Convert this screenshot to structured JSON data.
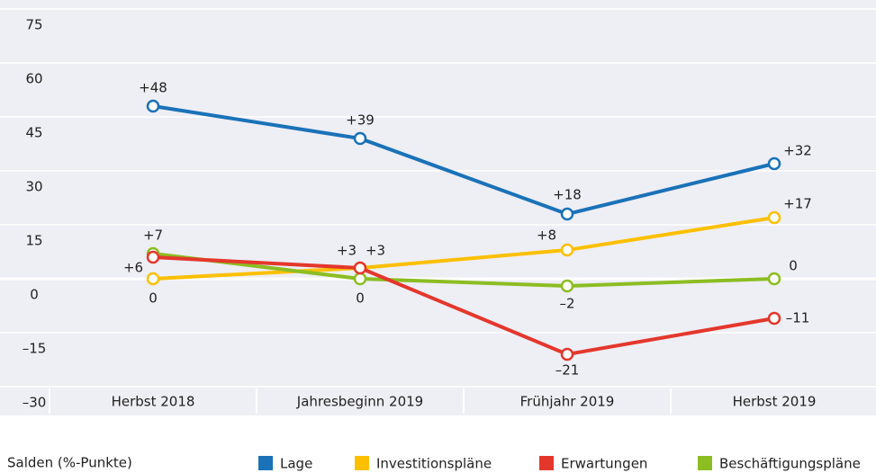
{
  "chart_data": {
    "type": "line",
    "y_label": "Salden (%-Punkte)",
    "categories": [
      "Herbst 2018",
      "Jahresbeginn 2019",
      "Frühjahr 2019",
      "Herbst 2019"
    ],
    "series": [
      {
        "name": "Lage",
        "color": "#1a72b8",
        "values": [
          48,
          39,
          18,
          32
        ],
        "value_labels": [
          "+48",
          "+39",
          "+18",
          "+32"
        ]
      },
      {
        "name": "Investitionspläne",
        "color": "#fcc000",
        "values": [
          0,
          3,
          8,
          17
        ],
        "value_labels": [
          "0",
          "+3",
          "+8",
          "+17"
        ]
      },
      {
        "name": "Erwartungen",
        "color": "#e4372c",
        "values": [
          6,
          3,
          -21,
          -11
        ],
        "value_labels": [
          "+6",
          "+3",
          "–21",
          "–11"
        ]
      },
      {
        "name": "Beschäftigungspläne",
        "color": "#8cbd22",
        "values": [
          7,
          0,
          -2,
          0
        ],
        "value_labels": [
          "+7",
          "0",
          "–2",
          "0"
        ]
      }
    ],
    "ylim": [
      -30,
      75
    ],
    "yticks": [
      {
        "value": -30,
        "label": "–30"
      },
      {
        "value": -15,
        "label": "–15"
      },
      0,
      15,
      30,
      45,
      60,
      75
    ],
    "grid": true
  }
}
